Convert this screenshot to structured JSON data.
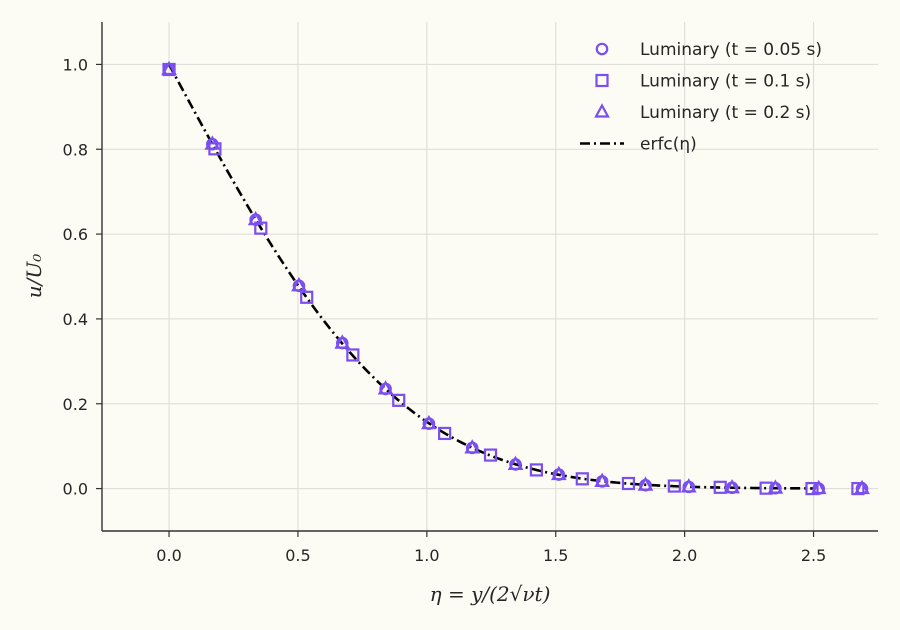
{
  "chart_data": {
    "type": "scatter",
    "xlabel": "η = y/(2√νt)",
    "ylabel": "u/U₀",
    "xlim": [
      -0.26,
      2.75
    ],
    "ylim": [
      -0.1,
      1.1
    ],
    "x_ticks": [
      "0.0",
      "0.5",
      "1.0",
      "1.5",
      "2.0",
      "2.5"
    ],
    "x_tick_values": [
      0,
      0.5,
      1.0,
      1.5,
      2.0,
      2.5
    ],
    "y_ticks": [
      "0.0",
      "0.2",
      "0.4",
      "0.6",
      "0.8",
      "1.0"
    ],
    "y_tick_values": [
      0,
      0.2,
      0.4,
      0.6,
      0.8,
      1.0
    ],
    "grid": true,
    "legend_position": "top-right",
    "marker_color": "#7b4ef0",
    "line_color": "#000000",
    "series": [
      {
        "name": "Luminary (t = 0.05 s)",
        "marker": "circle",
        "x": [
          0.0,
          0.168,
          0.336,
          0.504,
          0.672,
          0.84,
          1.008,
          1.176,
          1.344,
          1.512,
          1.68,
          1.848,
          2.016,
          2.184,
          2.352,
          2.52,
          2.688
        ],
        "y": [
          0.988,
          0.812,
          0.634,
          0.478,
          0.343,
          0.235,
          0.153,
          0.096,
          0.057,
          0.033,
          0.017,
          0.008,
          0.004,
          0.002,
          0.001,
          0.0,
          0.0
        ]
      },
      {
        "name": "Luminary (t = 0.1 s)",
        "marker": "square",
        "x": [
          0.0,
          0.178,
          0.356,
          0.534,
          0.713,
          0.891,
          1.069,
          1.247,
          1.425,
          1.603,
          1.782,
          1.96,
          2.138,
          2.316,
          2.494,
          2.672
        ],
        "y": [
          0.988,
          0.801,
          0.614,
          0.451,
          0.315,
          0.208,
          0.13,
          0.079,
          0.044,
          0.023,
          0.012,
          0.006,
          0.003,
          0.001,
          0.0,
          0.0
        ]
      },
      {
        "name": "Luminary (t = 0.2 s)",
        "marker": "triangle",
        "x": [
          0.0,
          0.168,
          0.336,
          0.504,
          0.672,
          0.84,
          1.008,
          1.176,
          1.344,
          1.512,
          1.68,
          1.848,
          2.016,
          2.184,
          2.352,
          2.52,
          2.688
        ],
        "y": [
          0.988,
          0.812,
          0.634,
          0.478,
          0.343,
          0.235,
          0.153,
          0.096,
          0.057,
          0.033,
          0.017,
          0.008,
          0.004,
          0.002,
          0.001,
          0.0,
          0.0
        ]
      }
    ],
    "reference_line": {
      "name": "erfc(η)",
      "style": "dash-dot",
      "x_range": [
        0,
        2.5
      ]
    }
  }
}
